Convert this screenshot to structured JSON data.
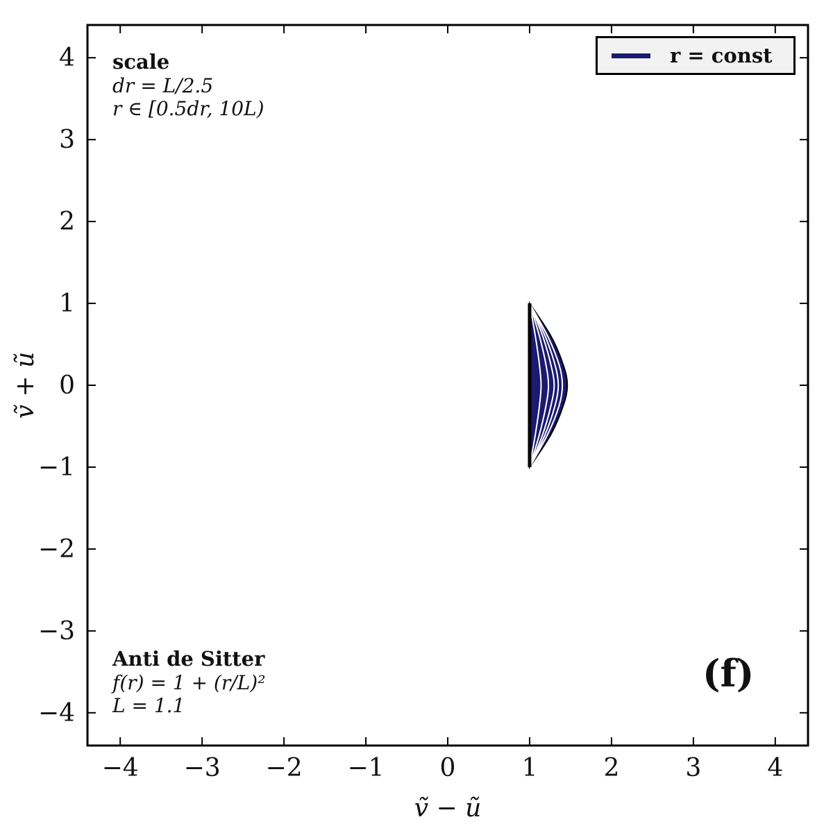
{
  "chart_data": {
    "type": "line",
    "xlabel": "ṽ − ũ",
    "ylabel": "ṽ + ũ",
    "xlim": [
      -4.4,
      4.4
    ],
    "ylim": [
      -4.4,
      4.4
    ],
    "xticks": [
      -4,
      -3,
      -2,
      -1,
      0,
      1,
      2,
      3,
      4
    ],
    "yticks": [
      -4,
      -3,
      -2,
      -1,
      0,
      1,
      2,
      3,
      4
    ],
    "xtick_labels": [
      "−4",
      "−3",
      "−2",
      "−1",
      "0",
      "1",
      "2",
      "3",
      "4"
    ],
    "ytick_labels": [
      "−4",
      "−3",
      "−2",
      "−1",
      "0",
      "1",
      "2",
      "3",
      "4"
    ],
    "grid": false,
    "legend_position": "top-right",
    "series": [
      {
        "name": "r = const",
        "color": "#1a1a6e",
        "boundary": {
          "x": 1,
          "y_range": [
            -1,
            1
          ]
        },
        "curves": [
          {
            "x": [
              1.0,
              1.07,
              1.12,
              1.14,
              1.12,
              1.07,
              1.0
            ],
            "y": [
              -1.0,
              -0.6,
              -0.25,
              0.0,
              0.25,
              0.6,
              1.0
            ]
          },
          {
            "x": [
              1.0,
              1.12,
              1.2,
              1.23,
              1.2,
              1.12,
              1.0
            ],
            "y": [
              -1.0,
              -0.6,
              -0.25,
              0.0,
              0.25,
              0.6,
              1.0
            ]
          },
          {
            "x": [
              1.0,
              1.16,
              1.26,
              1.3,
              1.26,
              1.16,
              1.0
            ],
            "y": [
              -1.0,
              -0.6,
              -0.25,
              0.0,
              0.25,
              0.6,
              1.0
            ]
          },
          {
            "x": [
              1.0,
              1.19,
              1.31,
              1.35,
              1.31,
              1.19,
              1.0
            ],
            "y": [
              -1.0,
              -0.6,
              -0.25,
              0.0,
              0.25,
              0.6,
              1.0
            ]
          },
          {
            "x": [
              1.0,
              1.22,
              1.36,
              1.4,
              1.36,
              1.22,
              1.0
            ],
            "y": [
              -1.0,
              -0.6,
              -0.25,
              0.0,
              0.25,
              0.6,
              1.0
            ]
          },
          {
            "x": [
              1.0,
              1.26,
              1.41,
              1.46,
              1.41,
              1.26,
              1.0
            ],
            "y": [
              -1.0,
              -0.6,
              -0.25,
              0.0,
              0.25,
              0.6,
              1.0
            ]
          }
        ]
      }
    ]
  },
  "legend": {
    "label": "r = const"
  },
  "annotations": {
    "top_title": "scale",
    "top_line1": "dr = L/2.5",
    "top_line2": "r ∈ [0.5dr, 10L)",
    "bottom_title": "Anti de Sitter",
    "bottom_line1": "f(r) = 1 + (r/L)²",
    "bottom_line2": "L = 1.1",
    "panel_tag": "(f)"
  }
}
